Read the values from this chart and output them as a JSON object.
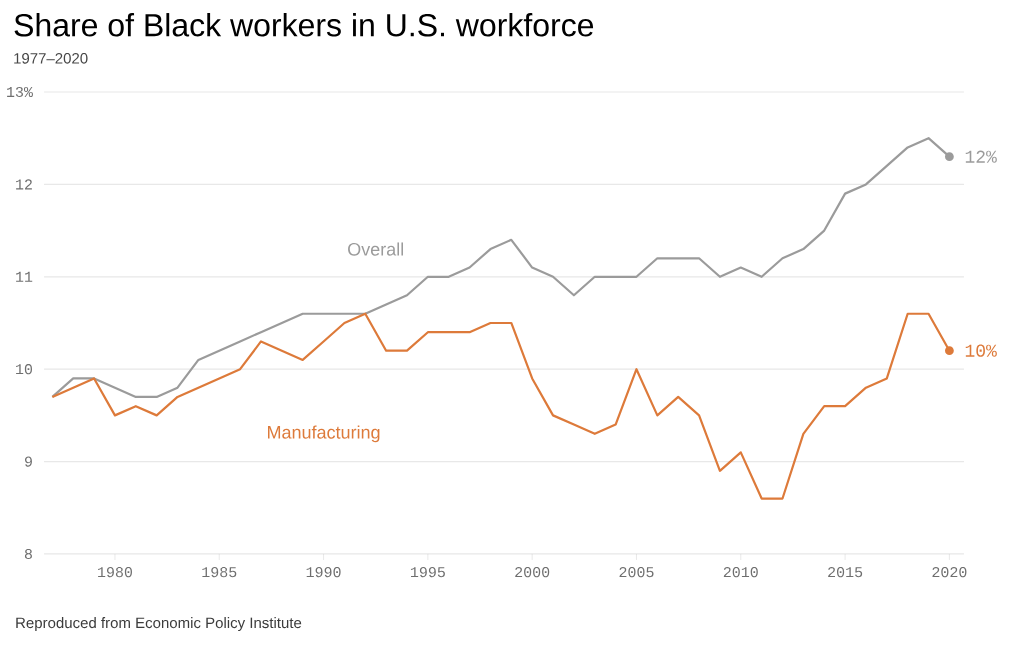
{
  "chart_data": {
    "type": "line",
    "title": "Share of Black workers in U.S. workforce",
    "subtitle": "1977–2020",
    "annotations": [
      "Reproduced from Economic Policy Institute"
    ],
    "x": [
      1977,
      1978,
      1979,
      1980,
      1981,
      1982,
      1983,
      1984,
      1985,
      1986,
      1987,
      1988,
      1989,
      1990,
      1991,
      1992,
      1993,
      1994,
      1995,
      1996,
      1997,
      1998,
      1999,
      2000,
      2001,
      2002,
      2003,
      2004,
      2005,
      2006,
      2007,
      2008,
      2009,
      2010,
      2011,
      2012,
      2013,
      2014,
      2015,
      2016,
      2017,
      2018,
      2019,
      2020
    ],
    "series": [
      {
        "name": "Overall",
        "color": "#9b9b9b",
        "values": [
          9.7,
          9.9,
          9.9,
          9.8,
          9.7,
          9.7,
          9.8,
          10.1,
          10.2,
          10.3,
          10.4,
          10.5,
          10.6,
          10.6,
          10.6,
          10.6,
          10.7,
          10.8,
          11.0,
          11.0,
          11.1,
          11.3,
          11.4,
          11.1,
          11.0,
          10.8,
          11.0,
          11.0,
          11.0,
          11.2,
          11.2,
          11.2,
          11.0,
          11.1,
          11.0,
          11.2,
          11.3,
          11.5,
          11.9,
          12.0,
          12.2,
          12.4,
          12.5,
          12.3
        ],
        "value_labels": [
          null,
          null,
          null,
          null,
          null,
          null,
          null,
          null,
          null,
          null,
          null,
          null,
          null,
          null,
          null,
          null,
          null,
          null,
          null,
          null,
          null,
          null,
          null,
          null,
          null,
          null,
          null,
          null,
          null,
          null,
          null,
          null,
          null,
          null,
          null,
          null,
          null,
          null,
          null,
          null,
          null,
          null,
          null,
          "12%"
        ]
      },
      {
        "name": "Manufacturing",
        "color": "#dd7a3a",
        "values": [
          9.7,
          9.8,
          9.9,
          9.5,
          9.6,
          9.5,
          9.7,
          9.8,
          9.9,
          10.0,
          10.3,
          10.2,
          10.1,
          10.3,
          10.5,
          10.6,
          10.2,
          10.2,
          10.4,
          10.4,
          10.4,
          10.5,
          10.5,
          9.9,
          9.5,
          9.4,
          9.3,
          9.4,
          10.0,
          9.5,
          9.7,
          9.5,
          8.9,
          9.1,
          8.6,
          8.6,
          9.3,
          9.6,
          9.6,
          9.8,
          9.9,
          10.6,
          10.6,
          10.2
        ],
        "value_labels": [
          null,
          null,
          null,
          null,
          null,
          null,
          null,
          null,
          null,
          null,
          null,
          null,
          null,
          null,
          null,
          null,
          null,
          null,
          null,
          null,
          null,
          null,
          null,
          null,
          null,
          null,
          null,
          null,
          null,
          null,
          null,
          null,
          null,
          null,
          null,
          null,
          null,
          null,
          null,
          null,
          null,
          null,
          null,
          "10%"
        ]
      }
    ],
    "xlim": [
      1976.6,
      2020.7
    ],
    "ylim": [
      8,
      13
    ],
    "xticks": [
      1980,
      1985,
      1990,
      1995,
      2000,
      2005,
      2010,
      2015,
      2020
    ],
    "yticks": [
      8,
      9,
      10,
      11,
      12,
      {
        "value": 13,
        "label": "13%"
      }
    ],
    "grid": "y",
    "line_style": "solid"
  }
}
